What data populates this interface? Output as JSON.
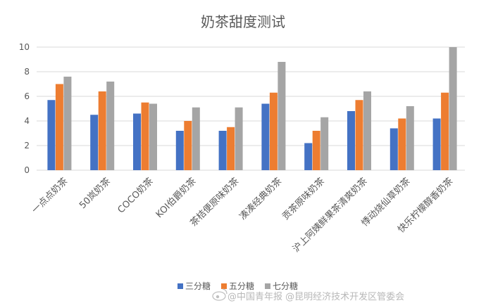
{
  "chart_data": {
    "type": "bar",
    "title": "奶茶甜度测试",
    "xlabel": "",
    "ylabel": "",
    "ylim": [
      0,
      10
    ],
    "yticks": [
      0,
      2,
      4,
      6,
      8,
      10
    ],
    "grid": true,
    "legend_position": "bottom",
    "categories": [
      "一点点奶茶",
      "50岚奶茶",
      "COCO奶茶",
      "KOI伯爵奶茶",
      "茶桔便原味奶茶",
      "凑凑经典奶茶",
      "贡茶原味奶茶",
      "沪上阿姨鲜果茶清爽奶茶",
      "悸动烧仙草奶茶",
      "快乐柠檬醇香奶茶"
    ],
    "series": [
      {
        "name": "三分糖",
        "color": "#4472c4",
        "values": [
          5.7,
          4.5,
          4.6,
          3.2,
          3.2,
          5.4,
          2.2,
          4.8,
          3.4,
          4.2
        ]
      },
      {
        "name": "五分糖",
        "color": "#ed7d31",
        "values": [
          7.0,
          6.4,
          5.5,
          4.0,
          3.5,
          6.3,
          3.2,
          5.7,
          4.2,
          6.3
        ]
      },
      {
        "name": "七分糖",
        "color": "#a5a5a5",
        "values": [
          7.6,
          7.2,
          5.4,
          5.1,
          5.1,
          8.8,
          4.3,
          6.4,
          5.2,
          10.0
        ]
      }
    ]
  },
  "watermark": {
    "text": "@中国青年报 @昆明经济技术开发区管委会",
    "icon": "weibo-icon"
  }
}
